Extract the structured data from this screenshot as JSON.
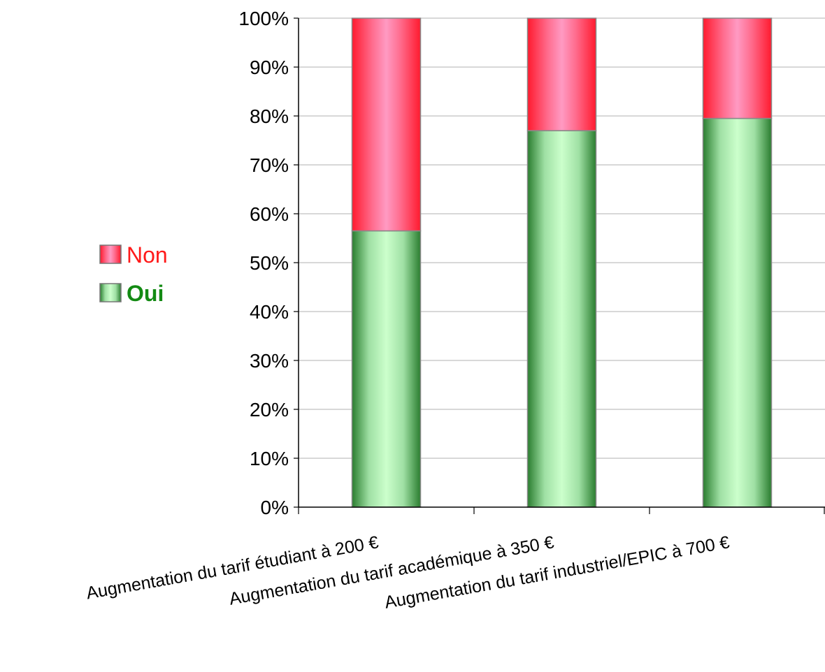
{
  "chart_data": {
    "type": "bar",
    "stacked": true,
    "percent": true,
    "categories": [
      "Augmentation du tarif étudiant à 200 €",
      "Augmentation du tarif académique à 350 €",
      "Augmentation du tarif industriel/EPIC à 700 €"
    ],
    "series": [
      {
        "name": "Oui",
        "values": [
          56.5,
          77,
          79.5
        ],
        "color": "#2e8b3a",
        "label_color": "#138a13"
      },
      {
        "name": "Non",
        "values": [
          43.5,
          23,
          20.5
        ],
        "color": "#ff2a3c",
        "label_color": "#ff1a1a"
      }
    ],
    "ylim": [
      0,
      100
    ],
    "yticks": [
      "0%",
      "10%",
      "20%",
      "30%",
      "40%",
      "50%",
      "60%",
      "70%",
      "80%",
      "90%",
      "100%"
    ],
    "grid": true,
    "legend_placement": "left",
    "title": "",
    "xlabel": "",
    "ylabel": ""
  }
}
